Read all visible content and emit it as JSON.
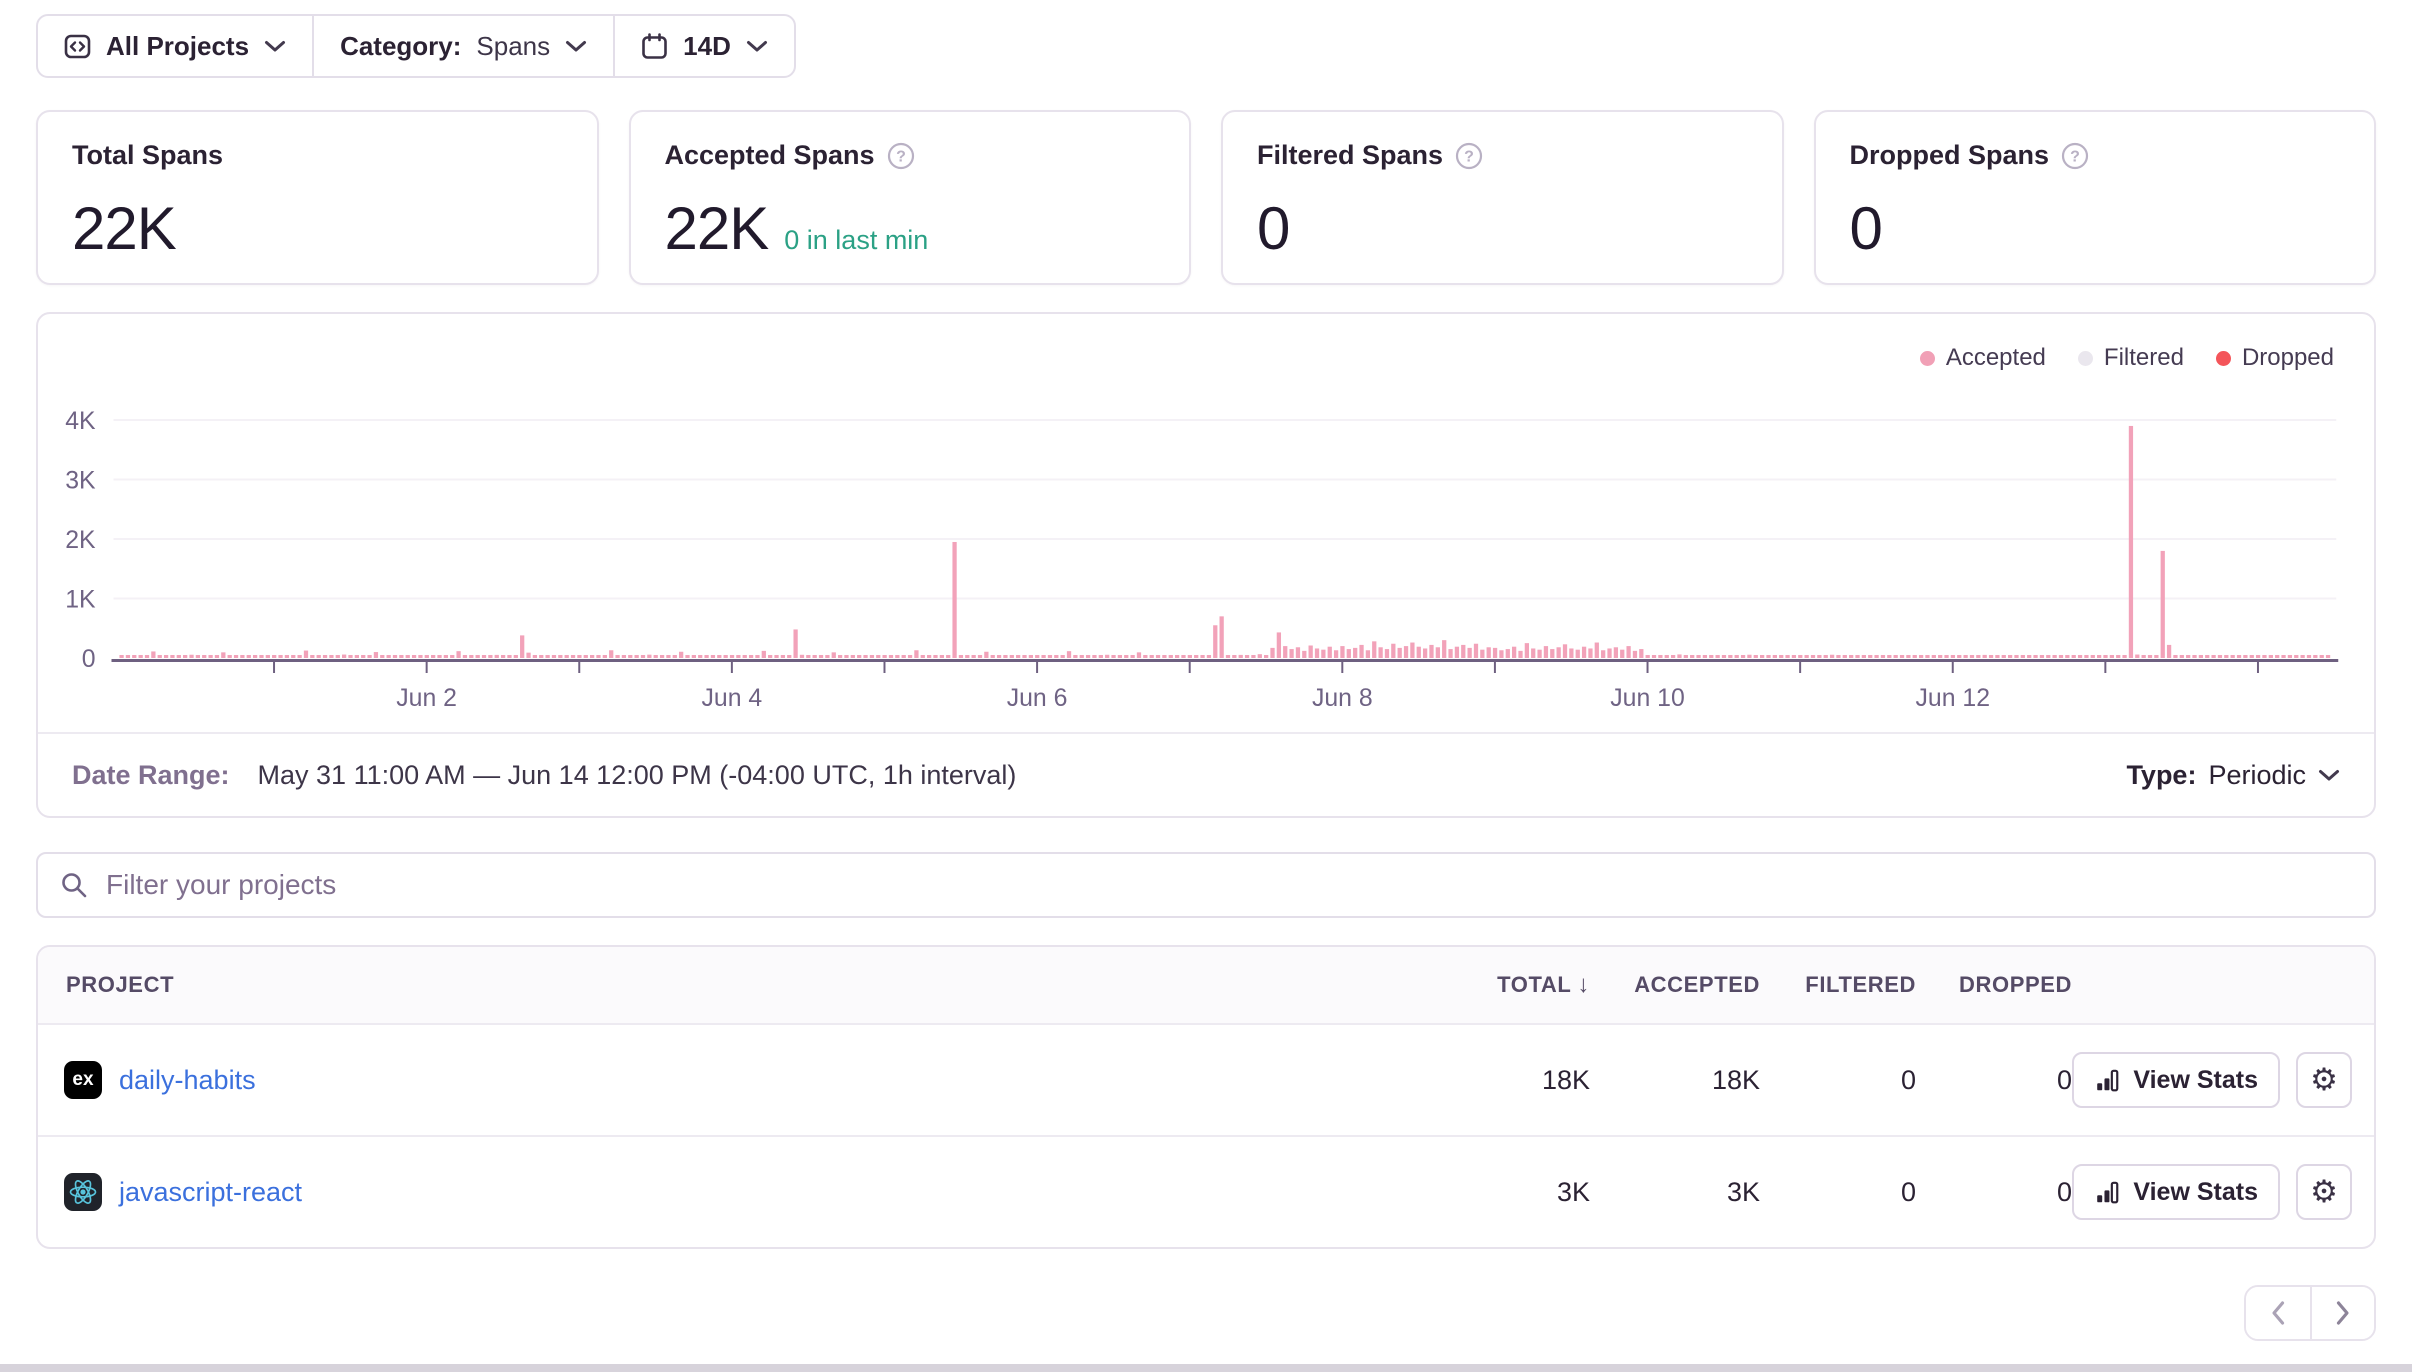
{
  "toolbar": {
    "projects": {
      "label": "All Projects",
      "icon": "projects-icon"
    },
    "category": {
      "label": "Category:",
      "value": "Spans"
    },
    "period": {
      "label": "14D",
      "icon": "calendar-icon"
    }
  },
  "stat_cards": [
    {
      "id": "total-spans",
      "title": "Total Spans",
      "value": "22K",
      "has_help": false,
      "subtext": ""
    },
    {
      "id": "accepted-spans",
      "title": "Accepted Spans",
      "value": "22K",
      "has_help": true,
      "subtext": "0 in last min"
    },
    {
      "id": "filtered-spans",
      "title": "Filtered Spans",
      "value": "0",
      "has_help": true,
      "subtext": ""
    },
    {
      "id": "dropped-spans",
      "title": "Dropped Spans",
      "value": "0",
      "has_help": true,
      "subtext": ""
    }
  ],
  "chart": {
    "legend": [
      {
        "label": "Accepted",
        "color": "#f1a0b6"
      },
      {
        "label": "Filtered",
        "color": "#eae7ee"
      },
      {
        "label": "Dropped",
        "color": "#f4555a"
      }
    ]
  },
  "chart_data": {
    "type": "bar",
    "title": "Spans usage over time",
    "interval": "1h",
    "x_start": "May 31 00:00",
    "x_end": "Jun 14 11:00",
    "ylim": [
      0,
      4300
    ],
    "y_axis": [
      {
        "label": "0",
        "value": 0
      },
      {
        "label": "1K",
        "value": 1000
      },
      {
        "label": "2K",
        "value": 2000
      },
      {
        "label": "3K",
        "value": 3000
      },
      {
        "label": "4K",
        "value": 4000
      }
    ],
    "x_axis": [
      {
        "label": "Jun 2",
        "hour": 48
      },
      {
        "label": "Jun 4",
        "hour": 96
      },
      {
        "label": "Jun 6",
        "hour": 144
      },
      {
        "label": "Jun 8",
        "hour": 192
      },
      {
        "label": "Jun 10",
        "hour": 240
      },
      {
        "label": "Jun 12",
        "hour": 288
      }
    ],
    "accepted_hourly": [
      40,
      30,
      28,
      35,
      26,
      110,
      38,
      30,
      45,
      28,
      36,
      55,
      35,
      28,
      42,
      34,
      95,
      28,
      40,
      34,
      30,
      46,
      26,
      32,
      44,
      28,
      32,
      38,
      26,
      125,
      40,
      30,
      48,
      30,
      36,
      58,
      34,
      26,
      42,
      34,
      100,
      30,
      44,
      36,
      28,
      48,
      28,
      34,
      38,
      26,
      30,
      36,
      28,
      115,
      36,
      28,
      46,
      26,
      34,
      52,
      32,
      26,
      40,
      380,
      90,
      26,
      40,
      32,
      28,
      44,
      26,
      30,
      42,
      28,
      30,
      40,
      26,
      130,
      38,
      30,
      46,
      28,
      36,
      56,
      34,
      28,
      44,
      32,
      105,
      28,
      42,
      34,
      30,
      46,
      28,
      32,
      40,
      28,
      32,
      36,
      26,
      120,
      36,
      30,
      44,
      28,
      480,
      54,
      32,
      26,
      40,
      34,
      95,
      26,
      40,
      32,
      28,
      42,
      26,
      30,
      44,
      30,
      32,
      40,
      28,
      130,
      40,
      32,
      48,
      30,
      36,
      1950,
      36,
      28,
      44,
      36,
      105,
      28,
      44,
      36,
      30,
      48,
      28,
      34,
      40,
      28,
      30,
      36,
      26,
      115,
      36,
      28,
      46,
      28,
      34,
      54,
      32,
      26,
      42,
      32,
      95,
      28,
      42,
      34,
      28,
      44,
      26,
      30,
      48,
      34,
      36,
      44,
      550,
      700,
      44,
      36,
      52,
      36,
      44,
      64,
      40,
      170,
      430,
      200,
      150,
      180,
      120,
      210,
      160,
      140,
      190,
      130,
      200,
      150,
      170,
      220,
      130,
      280,
      180,
      150,
      240,
      170,
      200,
      260,
      190,
      160,
      220,
      180,
      300,
      150,
      190,
      220,
      170,
      240,
      140,
      180,
      170,
      130,
      150,
      190,
      120,
      250,
      160,
      140,
      200,
      150,
      180,
      230,
      160,
      140,
      190,
      160,
      260,
      130,
      160,
      180,
      140,
      200,
      120,
      150,
      40,
      26,
      28,
      34,
      24,
      60,
      32,
      26,
      40,
      26,
      32,
      46,
      30,
      24,
      36,
      30,
      55,
      24,
      34,
      30,
      26,
      38,
      24,
      28,
      38,
      26,
      28,
      34,
      24,
      55,
      32,
      26,
      38,
      26,
      32,
      44,
      30,
      24,
      36,
      28,
      50,
      24,
      32,
      28,
      26,
      36,
      24,
      28,
      36,
      24,
      28,
      32,
      24,
      52,
      30,
      26,
      36,
      24,
      30,
      42,
      28,
      24,
      34,
      28,
      48,
      24,
      30,
      28,
      24,
      34,
      24,
      26,
      38,
      26,
      28,
      34,
      3900,
      58,
      32,
      26,
      38,
      1800,
      220,
      44,
      30,
      24,
      36,
      28,
      50,
      24,
      32,
      28,
      26,
      36,
      24,
      28,
      36,
      26,
      28,
      32,
      24,
      50,
      30,
      26,
      36,
      26,
      30,
      40
    ],
    "filtered_hourly_constant": 0,
    "dropped_hourly_constant": 0
  },
  "chart_footer": {
    "date_range_label": "Date Range:",
    "date_range_value": "May 31 11:00 AM — Jun 14 12:00 PM (-04:00 UTC, 1h interval)",
    "type_label": "Type:",
    "type_value": "Periodic"
  },
  "search": {
    "placeholder": "Filter your projects"
  },
  "table": {
    "headers": [
      "PROJECT",
      "TOTAL",
      "ACCEPTED",
      "FILTERED",
      "DROPPED"
    ],
    "sort": {
      "column": "TOTAL",
      "direction": "desc"
    },
    "view_stats_label": "View Stats",
    "rows": [
      {
        "project": "daily-habits",
        "platform": "express",
        "platform_badge": "ex",
        "total": "18K",
        "accepted": "18K",
        "filtered": "0",
        "dropped": "0"
      },
      {
        "project": "javascript-react",
        "platform": "react",
        "platform_badge": "",
        "total": "3K",
        "accepted": "3K",
        "filtered": "0",
        "dropped": "0"
      }
    ]
  },
  "pagination": {
    "prev_enabled": false,
    "next_enabled": true
  },
  "icons": {
    "gear-icon": "⚙",
    "sort-desc-icon": "↓",
    "help-icon": "?"
  },
  "colors": {
    "accepted": "#f2a2b9",
    "filtered": "#eae7ee",
    "dropped": "#f4555a",
    "link": "#3b70dd",
    "success_green": "#2ba185",
    "axis": "#6e6080",
    "text_primary": "#2b2233",
    "text_secondary": "#80708f"
  }
}
